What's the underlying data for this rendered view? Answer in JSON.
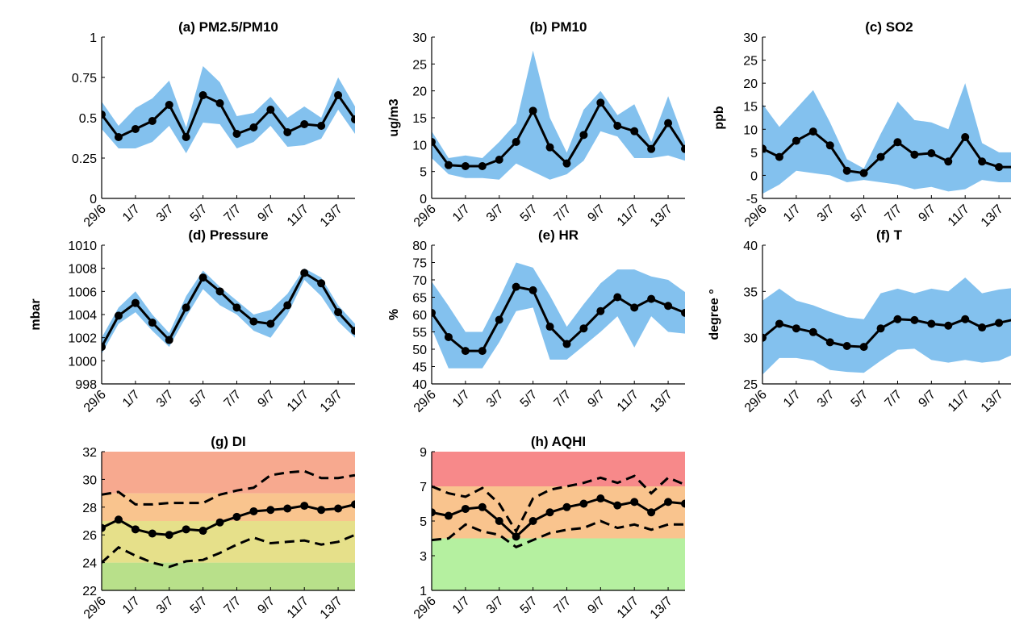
{
  "colors": {
    "band": "#83c1ee",
    "line": "#000000",
    "zone_green": "#b5f0a0",
    "zone_lightgreen": "#b8e08a",
    "zone_yellow": "#e6e08a",
    "zone_orange": "#f9c48e",
    "zone_salmon": "#f7a98f",
    "zone_red": "#f7898a"
  },
  "chart_data": [
    {
      "id": "a",
      "type": "line",
      "title": "(a) PM2.5/PM10",
      "xlabel": "",
      "ylabel": "",
      "categories": [
        "29/6",
        "30/6",
        "1/7",
        "2/7",
        "3/7",
        "4/7",
        "5/7",
        "6/7",
        "7/7",
        "8/7",
        "9/7",
        "10/7",
        "11/7",
        "12/7",
        "13/7",
        "14/7"
      ],
      "xtick_labels": [
        "29/6",
        "1/7",
        "3/7",
        "5/7",
        "7/7",
        "9/7",
        "11/7",
        "13/7"
      ],
      "ylim": [
        0,
        1
      ],
      "yticks": [
        0,
        0.25,
        0.5,
        0.75,
        1
      ],
      "ytick_labels": [
        "0",
        "0.25",
        "0.5",
        "0.75",
        "1"
      ],
      "values": [
        0.52,
        0.38,
        0.43,
        0.48,
        0.58,
        0.38,
        0.64,
        0.59,
        0.4,
        0.44,
        0.55,
        0.41,
        0.46,
        0.45,
        0.64,
        0.49
      ],
      "band_upper": [
        0.6,
        0.45,
        0.56,
        0.62,
        0.73,
        0.44,
        0.82,
        0.72,
        0.51,
        0.53,
        0.63,
        0.5,
        0.57,
        0.5,
        0.75,
        0.57
      ],
      "band_lower": [
        0.43,
        0.31,
        0.31,
        0.35,
        0.45,
        0.28,
        0.47,
        0.46,
        0.31,
        0.35,
        0.45,
        0.32,
        0.33,
        0.37,
        0.55,
        0.4
      ]
    },
    {
      "id": "b",
      "type": "line",
      "title": "(b) PM10",
      "xlabel": "",
      "ylabel": "ug/m3",
      "categories": [
        "29/6",
        "30/6",
        "1/7",
        "2/7",
        "3/7",
        "4/7",
        "5/7",
        "6/7",
        "7/7",
        "8/7",
        "9/7",
        "10/7",
        "11/7",
        "12/7",
        "13/7",
        "14/7"
      ],
      "xtick_labels": [
        "29/6",
        "1/7",
        "3/7",
        "5/7",
        "7/7",
        "9/7",
        "11/7",
        "13/7"
      ],
      "ylim": [
        0,
        30
      ],
      "yticks": [
        0,
        5,
        10,
        15,
        20,
        25,
        30
      ],
      "ytick_labels": [
        "0",
        "5",
        "10",
        "15",
        "20",
        "25",
        "30"
      ],
      "values": [
        10.5,
        6.2,
        6.0,
        6.0,
        7.2,
        10.5,
        16.3,
        9.5,
        6.5,
        11.8,
        17.8,
        13.5,
        12.5,
        9.2,
        14.0,
        9.2
      ],
      "band_upper": [
        12.5,
        7.5,
        8.0,
        7.5,
        10.5,
        14.0,
        27.5,
        15.0,
        8.5,
        16.5,
        20.0,
        15.5,
        17.5,
        10.5,
        19.0,
        10.5
      ],
      "band_lower": [
        7.5,
        4.5,
        3.8,
        3.8,
        3.5,
        6.5,
        5.0,
        3.5,
        4.5,
        7.0,
        12.5,
        11.5,
        7.5,
        7.5,
        8.0,
        7.0
      ]
    },
    {
      "id": "c",
      "type": "line",
      "title": "(c) SO2",
      "xlabel": "",
      "ylabel": "ppb",
      "categories": [
        "29/6",
        "30/6",
        "1/7",
        "2/7",
        "3/7",
        "4/7",
        "5/7",
        "6/7",
        "7/7",
        "8/7",
        "9/7",
        "10/7",
        "11/7",
        "12/7",
        "13/7",
        "14/7"
      ],
      "xtick_labels": [
        "29/6",
        "1/7",
        "3/7",
        "5/7",
        "7/7",
        "9/7",
        "11/7",
        "13/7"
      ],
      "ylim": [
        -5,
        30
      ],
      "yticks": [
        -5,
        0,
        5,
        10,
        15,
        20,
        25,
        30
      ],
      "ytick_labels": [
        "-5",
        "0",
        "5",
        "10",
        "15",
        "20",
        "25",
        "30"
      ],
      "values": [
        5.8,
        4.0,
        7.5,
        9.5,
        6.5,
        1.0,
        0.5,
        4.0,
        7.2,
        4.5,
        4.8,
        3.0,
        8.3,
        3.0,
        1.8,
        1.8
      ],
      "band_upper": [
        15.5,
        10.5,
        14.5,
        18.5,
        11.5,
        3.5,
        1.5,
        9.0,
        16.0,
        12.0,
        11.5,
        10.0,
        20.0,
        7.0,
        5.0,
        5.0
      ],
      "band_lower": [
        -4.0,
        -2.0,
        1.0,
        0.5,
        0.0,
        -1.5,
        -1.0,
        -1.5,
        -2.0,
        -3.0,
        -2.5,
        -3.5,
        -3.0,
        -1.0,
        -1.5,
        -1.5
      ]
    },
    {
      "id": "d",
      "type": "line",
      "title": "(d) Pressure",
      "xlabel": "",
      "ylabel": "mbar",
      "categories": [
        "29/6",
        "30/6",
        "1/7",
        "2/7",
        "3/7",
        "4/7",
        "5/7",
        "6/7",
        "7/7",
        "8/7",
        "9/7",
        "10/7",
        "11/7",
        "12/7",
        "13/7",
        "14/7"
      ],
      "xtick_labels": [
        "29/6",
        "1/7",
        "3/7",
        "5/7",
        "7/7",
        "9/7",
        "11/7",
        "13/7"
      ],
      "ylim": [
        998,
        1010
      ],
      "yticks": [
        998,
        1000,
        1002,
        1004,
        1006,
        1008,
        1010
      ],
      "ytick_labels": [
        "998",
        "1000",
        "1002",
        "1004",
        "1006",
        "1008",
        "1010"
      ],
      "values": [
        1001.2,
        1003.9,
        1005.0,
        1003.3,
        1001.8,
        1004.6,
        1007.2,
        1006.0,
        1004.6,
        1003.4,
        1003.2,
        1004.8,
        1007.6,
        1006.7,
        1004.2,
        1002.6
      ],
      "band_upper": [
        1002.0,
        1004.6,
        1006.0,
        1004.0,
        1002.4,
        1005.6,
        1007.8,
        1006.4,
        1005.2,
        1004.0,
        1004.4,
        1005.8,
        1008.0,
        1007.2,
        1004.8,
        1003.2
      ],
      "band_lower": [
        1000.6,
        1003.2,
        1004.2,
        1002.6,
        1001.2,
        1003.8,
        1006.2,
        1004.8,
        1004.0,
        1002.6,
        1002.0,
        1004.0,
        1007.0,
        1005.6,
        1003.4,
        1002.0
      ]
    },
    {
      "id": "e",
      "type": "line",
      "title": "(e) HR",
      "xlabel": "",
      "ylabel": "%",
      "categories": [
        "29/6",
        "30/6",
        "1/7",
        "2/7",
        "3/7",
        "4/7",
        "5/7",
        "6/7",
        "7/7",
        "8/7",
        "9/7",
        "10/7",
        "11/7",
        "12/7",
        "13/7",
        "14/7"
      ],
      "xtick_labels": [
        "29/6",
        "1/7",
        "3/7",
        "5/7",
        "7/7",
        "9/7",
        "11/7",
        "13/7"
      ],
      "ylim": [
        40,
        80
      ],
      "yticks": [
        40,
        45,
        50,
        55,
        60,
        65,
        70,
        75,
        80
      ],
      "ytick_labels": [
        "40",
        "45",
        "50",
        "55",
        "60",
        "65",
        "70",
        "75",
        "80"
      ],
      "values": [
        60.5,
        53.5,
        49.5,
        49.5,
        58.5,
        68.0,
        67.0,
        56.5,
        51.5,
        56.0,
        61.0,
        65.0,
        62.0,
        64.5,
        62.5,
        60.5
      ],
      "band_upper": [
        69.5,
        62.5,
        55.0,
        55.0,
        64.5,
        75.0,
        73.5,
        65.5,
        56.5,
        63.0,
        69.0,
        73.0,
        73.0,
        71.0,
        70.0,
        66.5
      ],
      "band_lower": [
        56.0,
        44.5,
        44.5,
        44.5,
        52.0,
        61.0,
        62.0,
        47.0,
        47.0,
        51.0,
        55.0,
        59.5,
        50.5,
        59.5,
        55.0,
        54.5
      ]
    },
    {
      "id": "f",
      "type": "line",
      "title": "(f) T",
      "xlabel": "",
      "ylabel": "degree °",
      "categories": [
        "29/6",
        "30/6",
        "1/7",
        "2/7",
        "3/7",
        "4/7",
        "5/7",
        "6/7",
        "7/7",
        "8/7",
        "9/7",
        "10/7",
        "11/7",
        "12/7",
        "13/7",
        "14/7"
      ],
      "xtick_labels": [
        "29/6",
        "1/7",
        "3/7",
        "5/7",
        "7/7",
        "9/7",
        "11/7",
        "13/7"
      ],
      "ylim": [
        25,
        40
      ],
      "yticks": [
        25,
        30,
        35,
        40
      ],
      "ytick_labels": [
        "25",
        "30",
        "35",
        "40"
      ],
      "values": [
        30.0,
        31.5,
        31.0,
        30.6,
        29.5,
        29.1,
        29.0,
        31.0,
        32.0,
        31.9,
        31.5,
        31.3,
        32.0,
        31.1,
        31.6,
        32.0
      ],
      "band_upper": [
        34.0,
        35.3,
        34.0,
        33.5,
        32.8,
        32.2,
        32.0,
        34.8,
        35.3,
        34.8,
        35.3,
        35.0,
        36.5,
        34.8,
        35.2,
        35.4
      ],
      "band_lower": [
        26.0,
        27.8,
        27.8,
        27.5,
        26.5,
        26.3,
        26.2,
        27.5,
        28.7,
        28.8,
        27.6,
        27.3,
        27.6,
        27.3,
        27.5,
        28.3
      ]
    },
    {
      "id": "g",
      "type": "line",
      "title": "(g) DI",
      "xlabel": "",
      "ylabel": "",
      "categories": [
        "29/6",
        "30/6",
        "1/7",
        "2/7",
        "3/7",
        "4/7",
        "5/7",
        "6/7",
        "7/7",
        "8/7",
        "9/7",
        "10/7",
        "11/7",
        "12/7",
        "13/7",
        "14/7"
      ],
      "xtick_labels": [
        "29/6",
        "1/7",
        "3/7",
        "5/7",
        "7/7",
        "9/7",
        "11/7",
        "13/7"
      ],
      "ylim": [
        22,
        32
      ],
      "yticks": [
        22,
        24,
        26,
        28,
        30,
        32
      ],
      "ytick_labels": [
        "22",
        "24",
        "26",
        "28",
        "30",
        "32"
      ],
      "values": [
        26.5,
        27.1,
        26.4,
        26.1,
        26.0,
        26.4,
        26.3,
        26.9,
        27.3,
        27.7,
        27.8,
        27.9,
        28.1,
        27.8,
        27.9,
        28.2
      ],
      "band_upper": [
        28.9,
        29.1,
        28.2,
        28.2,
        28.3,
        28.3,
        28.3,
        28.9,
        29.2,
        29.4,
        30.3,
        30.5,
        30.6,
        30.1,
        30.1,
        30.3
      ],
      "band_lower": [
        24.0,
        25.1,
        24.5,
        24.0,
        23.7,
        24.1,
        24.2,
        24.7,
        25.3,
        25.8,
        25.4,
        25.5,
        25.6,
        25.3,
        25.5,
        26.0
      ],
      "zones": [
        {
          "from": 22,
          "to": 24,
          "color_key": "zone_lightgreen"
        },
        {
          "from": 24,
          "to": 27,
          "color_key": "zone_yellow"
        },
        {
          "from": 27,
          "to": 29,
          "color_key": "zone_orange"
        },
        {
          "from": 29,
          "to": 32,
          "color_key": "zone_salmon"
        }
      ]
    },
    {
      "id": "h",
      "type": "line",
      "title": "(h) AQHI",
      "xlabel": "",
      "ylabel": "",
      "categories": [
        "29/6",
        "30/6",
        "1/7",
        "2/7",
        "3/7",
        "4/7",
        "5/7",
        "6/7",
        "7/7",
        "8/7",
        "9/7",
        "10/7",
        "11/7",
        "12/7",
        "13/7",
        "14/7"
      ],
      "xtick_labels": [
        "29/6",
        "1/7",
        "3/7",
        "5/7",
        "7/7",
        "9/7",
        "11/7",
        "13/7"
      ],
      "ylim": [
        1,
        9
      ],
      "yticks": [
        1,
        3,
        5,
        7,
        9
      ],
      "ytick_labels": [
        "1",
        "3",
        "5",
        "7",
        "9"
      ],
      "values": [
        5.5,
        5.3,
        5.7,
        5.8,
        5.0,
        4.1,
        5.0,
        5.5,
        5.8,
        6.0,
        6.3,
        5.9,
        6.1,
        5.5,
        6.1,
        6.0
      ],
      "band_upper": [
        7.0,
        6.6,
        6.4,
        6.9,
        6.0,
        4.4,
        6.3,
        6.8,
        7.0,
        7.2,
        7.5,
        7.2,
        7.6,
        6.6,
        7.5,
        7.1
      ],
      "band_lower": [
        3.9,
        4.0,
        4.8,
        4.4,
        4.2,
        3.5,
        3.9,
        4.3,
        4.5,
        4.6,
        5.0,
        4.6,
        4.8,
        4.5,
        4.8,
        4.8
      ],
      "zones": [
        {
          "from": 1,
          "to": 4,
          "color_key": "zone_green"
        },
        {
          "from": 4,
          "to": 7,
          "color_key": "zone_orange"
        },
        {
          "from": 7,
          "to": 9,
          "color_key": "zone_red"
        }
      ]
    }
  ]
}
